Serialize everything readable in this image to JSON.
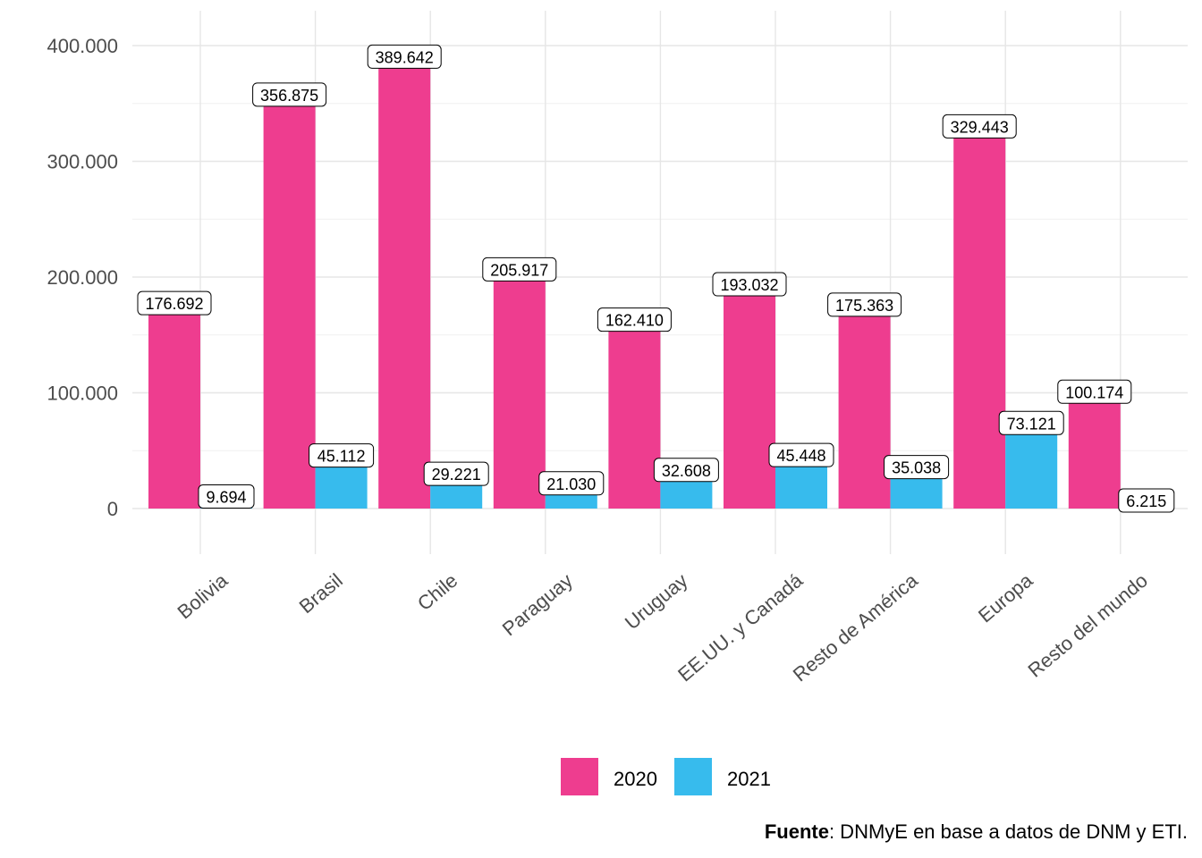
{
  "chart_data": {
    "type": "bar",
    "categories": [
      "Bolivia",
      "Brasil",
      "Chile",
      "Paraguay",
      "Uruguay",
      "EE.UU. y Canadá",
      "Resto de América",
      "Europa",
      "Resto del mundo"
    ],
    "series": [
      {
        "name": "2020",
        "color": "#EE3D8F",
        "values": [
          176692,
          356875,
          389642,
          205917,
          162410,
          193032,
          175363,
          329443,
          100174
        ],
        "labels": [
          "176.692",
          "356.875",
          "389.642",
          "205.917",
          "162.410",
          "193.032",
          "175.363",
          "329.443",
          "100.174"
        ]
      },
      {
        "name": "2021",
        "color": "#37BBED",
        "values": [
          9694,
          45112,
          29221,
          21030,
          32608,
          45448,
          35038,
          73121,
          6215
        ],
        "labels": [
          "9.694",
          "45.112",
          "29.221",
          "21.030",
          "32.608",
          "45.448",
          "35.038",
          "73.121",
          "6.215"
        ]
      }
    ],
    "ylim": [
      0,
      400000
    ],
    "yticks": [
      0,
      100000,
      200000,
      300000,
      400000
    ],
    "ytick_labels": [
      "0",
      "100.000",
      "200.000",
      "300.000",
      "400.000"
    ],
    "grid": true,
    "legend_position": "bottom"
  },
  "caption": {
    "bold": "Fuente",
    "rest": ": DNMyE en base a datos de DNM y ETI."
  }
}
